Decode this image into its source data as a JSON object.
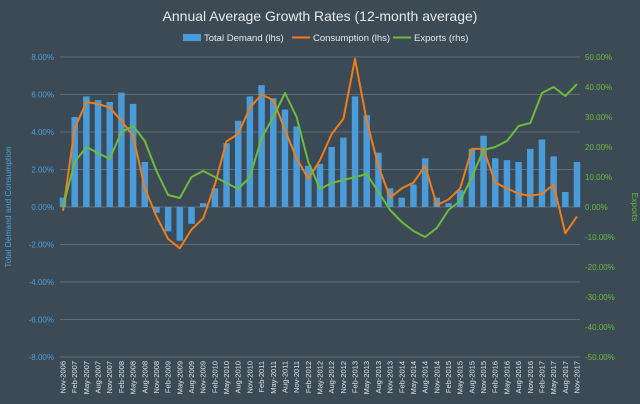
{
  "chart_data": {
    "type": "bar+line",
    "title": "Annual Average Growth Rates (12-month average)",
    "ylabel_left": "Total Demand and Consumption",
    "ylabel_right": "Exports",
    "ylim_left": [
      -0.08,
      0.08
    ],
    "ylim_right": [
      -0.5,
      0.5
    ],
    "y_ticks_left": [
      "8.00%",
      "6.00%",
      "4.00%",
      "2.00%",
      "0.00%",
      "-2.00%",
      "-4.00%",
      "-6.00%",
      "-8.00%"
    ],
    "y_ticks_right": [
      "50.00%",
      "40.00%",
      "30.00%",
      "20.00%",
      "10.00%",
      "0.00%",
      "-10.00%",
      "-20.00%",
      "-30.00%",
      "-40.00%",
      "-50.00%"
    ],
    "x_tick_labels": [
      "Nov-2006",
      "Feb-2007",
      "May-2007",
      "Aug-2007",
      "Nov-2007",
      "Feb-2008",
      "May-2008",
      "Aug-2008",
      "Nov-2008",
      "Feb-2009",
      "May-2009",
      "Aug-2009",
      "Nov-2009",
      "Feb-2010",
      "May-2010",
      "Aug-2010",
      "Nov-2010",
      "Feb-2011",
      "May-2011",
      "Aug-2011",
      "Nov-2011",
      "Feb-2012",
      "May-2012",
      "Aug-2012",
      "Nov-2012",
      "Feb-2013",
      "May-2013",
      "Aug-2013",
      "Nov-2013",
      "Feb-2014",
      "May-2014",
      "Aug-2014",
      "Nov-2014",
      "Feb-2015",
      "May-2015",
      "Aug-2015",
      "Nov-2015",
      "Feb-2016",
      "May-2016",
      "Aug-2016",
      "Nov-2016",
      "Feb-2017",
      "May-2017",
      "Aug-2017",
      "Nov-2017"
    ],
    "grid": true,
    "legend_position": "top",
    "series": [
      {
        "name": "Total Demand (lhs)",
        "kind": "bar",
        "axis": "left",
        "color": "#4a9bd9",
        "points": [
          [
            "2006-11",
            0.005
          ],
          [
            "2007-02",
            0.048
          ],
          [
            "2007-05",
            0.059
          ],
          [
            "2007-08",
            0.057
          ],
          [
            "2007-11",
            0.056
          ],
          [
            "2008-02",
            0.061
          ],
          [
            "2008-05",
            0.055
          ],
          [
            "2008-08",
            0.024
          ],
          [
            "2008-11",
            -0.003
          ],
          [
            "2009-02",
            -0.013
          ],
          [
            "2009-05",
            -0.018
          ],
          [
            "2009-08",
            -0.009
          ],
          [
            "2009-11",
            0.002
          ],
          [
            "2010-02",
            0.01
          ],
          [
            "2010-05",
            0.034
          ],
          [
            "2010-08",
            0.046
          ],
          [
            "2010-11",
            0.059
          ],
          [
            "2011-02",
            0.065
          ],
          [
            "2011-05",
            0.058
          ],
          [
            "2011-08",
            0.052
          ],
          [
            "2011-11",
            0.043
          ],
          [
            "2012-02",
            0.022
          ],
          [
            "2012-05",
            0.023
          ],
          [
            "2012-08",
            0.032
          ],
          [
            "2012-11",
            0.037
          ],
          [
            "2013-02",
            0.059
          ],
          [
            "2013-05",
            0.049
          ],
          [
            "2013-08",
            0.029
          ],
          [
            "2013-11",
            0.01
          ],
          [
            "2014-02",
            0.005
          ],
          [
            "2014-05",
            0.012
          ],
          [
            "2014-08",
            0.026
          ],
          [
            "2014-11",
            0.005
          ],
          [
            "2015-02",
            0.002
          ],
          [
            "2015-05",
            0.009
          ],
          [
            "2015-08",
            0.031
          ],
          [
            "2015-11",
            0.038
          ],
          [
            "2016-02",
            0.026
          ],
          [
            "2016-05",
            0.025
          ],
          [
            "2016-08",
            0.024
          ],
          [
            "2016-11",
            0.031
          ],
          [
            "2017-02",
            0.036
          ],
          [
            "2017-05",
            0.027
          ],
          [
            "2017-08",
            0.008
          ],
          [
            "2017-11",
            0.024
          ]
        ]
      },
      {
        "name": "Consumption (lhs)",
        "kind": "line",
        "axis": "left",
        "color": "#f07d1a",
        "points": [
          [
            "2006-11",
            -0.002
          ],
          [
            "2007-02",
            0.042
          ],
          [
            "2007-05",
            0.056
          ],
          [
            "2007-08",
            0.055
          ],
          [
            "2007-11",
            0.053
          ],
          [
            "2008-02",
            0.046
          ],
          [
            "2008-05",
            0.038
          ],
          [
            "2008-08",
            0.01
          ],
          [
            "2008-11",
            -0.005
          ],
          [
            "2009-02",
            -0.017
          ],
          [
            "2009-05",
            -0.022
          ],
          [
            "2009-08",
            -0.012
          ],
          [
            "2009-11",
            -0.006
          ],
          [
            "2010-02",
            0.012
          ],
          [
            "2010-05",
            0.035
          ],
          [
            "2010-08",
            0.039
          ],
          [
            "2010-11",
            0.053
          ],
          [
            "2011-02",
            0.06
          ],
          [
            "2011-05",
            0.057
          ],
          [
            "2011-08",
            0.041
          ],
          [
            "2011-11",
            0.026
          ],
          [
            "2012-02",
            0.015
          ],
          [
            "2012-05",
            0.025
          ],
          [
            "2012-08",
            0.039
          ],
          [
            "2012-11",
            0.047
          ],
          [
            "2013-02",
            0.079
          ],
          [
            "2013-05",
            0.046
          ],
          [
            "2013-08",
            0.022
          ],
          [
            "2013-11",
            0.005
          ],
          [
            "2014-02",
            0.01
          ],
          [
            "2014-05",
            0.013
          ],
          [
            "2014-08",
            0.022
          ],
          [
            "2014-11",
            0.001
          ],
          [
            "2015-02",
            0.004
          ],
          [
            "2015-05",
            0.01
          ],
          [
            "2015-08",
            0.031
          ],
          [
            "2015-11",
            0.031
          ],
          [
            "2016-02",
            0.013
          ],
          [
            "2016-05",
            0.01
          ],
          [
            "2016-08",
            0.007
          ],
          [
            "2016-11",
            0.006
          ],
          [
            "2017-02",
            0.007
          ],
          [
            "2017-05",
            0.012
          ],
          [
            "2017-08",
            -0.014
          ],
          [
            "2017-11",
            -0.005
          ]
        ]
      },
      {
        "name": "Exports (rhs)",
        "kind": "line",
        "axis": "right",
        "color": "#6cbb3c",
        "points": [
          [
            "2006-11",
            0.0
          ],
          [
            "2007-02",
            0.15
          ],
          [
            "2007-05",
            0.2
          ],
          [
            "2007-08",
            0.18
          ],
          [
            "2007-11",
            0.16
          ],
          [
            "2008-02",
            0.25
          ],
          [
            "2008-05",
            0.27
          ],
          [
            "2008-08",
            0.22
          ],
          [
            "2008-11",
            0.12
          ],
          [
            "2009-02",
            0.04
          ],
          [
            "2009-05",
            0.03
          ],
          [
            "2009-08",
            0.1
          ],
          [
            "2009-11",
            0.12
          ],
          [
            "2010-02",
            0.1
          ],
          [
            "2010-05",
            0.08
          ],
          [
            "2010-08",
            0.06
          ],
          [
            "2010-11",
            0.1
          ],
          [
            "2011-02",
            0.23
          ],
          [
            "2011-05",
            0.3
          ],
          [
            "2011-08",
            0.38
          ],
          [
            "2011-11",
            0.3
          ],
          [
            "2012-02",
            0.15
          ],
          [
            "2012-05",
            0.06
          ],
          [
            "2012-08",
            0.08
          ],
          [
            "2012-11",
            0.09
          ],
          [
            "2013-02",
            0.1
          ],
          [
            "2013-05",
            0.11
          ],
          [
            "2013-08",
            0.05
          ],
          [
            "2013-11",
            -0.01
          ],
          [
            "2014-02",
            -0.05
          ],
          [
            "2014-05",
            -0.08
          ],
          [
            "2014-08",
            -0.1
          ],
          [
            "2014-11",
            -0.07
          ],
          [
            "2015-02",
            -0.01
          ],
          [
            "2015-05",
            0.02
          ],
          [
            "2015-08",
            0.1
          ],
          [
            "2015-11",
            0.19
          ],
          [
            "2016-02",
            0.2
          ],
          [
            "2016-05",
            0.22
          ],
          [
            "2016-08",
            0.27
          ],
          [
            "2016-11",
            0.28
          ],
          [
            "2017-02",
            0.38
          ],
          [
            "2017-05",
            0.4
          ],
          [
            "2017-08",
            0.37
          ],
          [
            "2017-11",
            0.41
          ]
        ]
      }
    ]
  }
}
